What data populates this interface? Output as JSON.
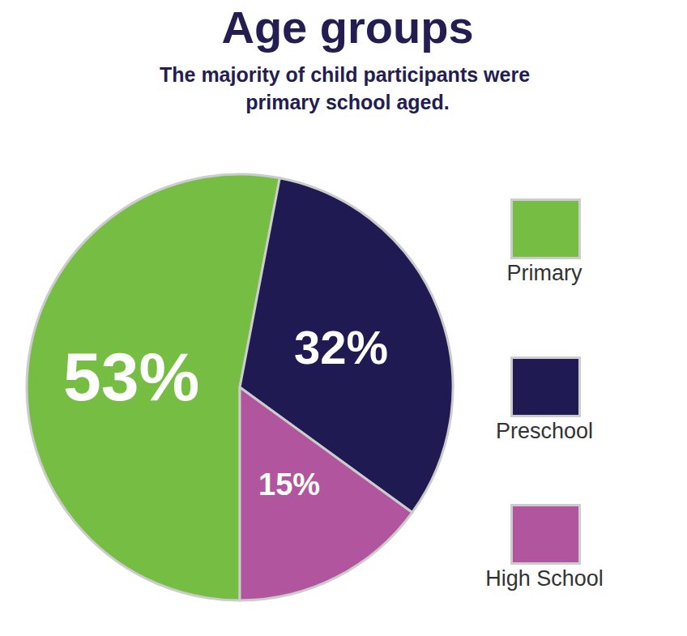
{
  "chart_data": {
    "type": "pie",
    "title": "Age groups",
    "subtitle": "The majority of child participants were primary school aged.",
    "categories": [
      "Primary",
      "Preschool",
      "High School"
    ],
    "values": [
      53,
      32,
      15
    ],
    "value_labels": [
      "53%",
      "32%",
      "15%"
    ],
    "colors": [
      "#76bd43",
      "#201a52",
      "#b2559f"
    ],
    "data_labels": true,
    "legend": "right"
  }
}
